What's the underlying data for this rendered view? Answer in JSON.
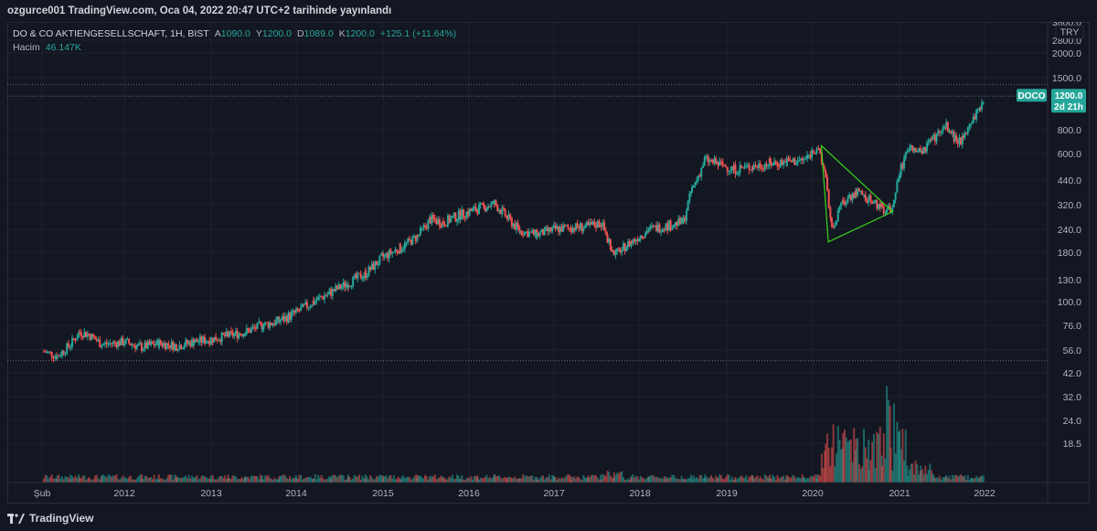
{
  "header": {
    "published": "ozgurce001 TradingView.com, Oca 04, 2022 20:47 UTC+2 tarihinde yayınlandı"
  },
  "legend": {
    "symbol": "DO & CO AKTIENGESELLSCHAFT, 1H, BIST",
    "o_label": "A",
    "o_value": "1090.0",
    "h_label": "Y",
    "h_value": "1200.0",
    "l_label": "D",
    "l_value": "1089.0",
    "c_label": "K",
    "c_value": "1200.0",
    "change": "+125.1 (+11.64%)",
    "volume_label": "Hacim",
    "volume_value": "46.147K"
  },
  "price_axis": {
    "currency": "TRY",
    "ticks": [
      "3800.0",
      "2800.0",
      "2000.0",
      "1500.0",
      "800.0",
      "600.0",
      "440.0",
      "320.0",
      "240.0",
      "180.0",
      "130.0",
      "100.0",
      "76.0",
      "56.0",
      "42.0",
      "32.0",
      "24.0",
      "18.5"
    ],
    "last_price": "1200.0",
    "countdown": "2d 21h",
    "symbol_badge": "DOCO"
  },
  "time_axis": {
    "ticks": [
      "Şub",
      "2012",
      "2013",
      "2014",
      "2015",
      "2016",
      "2017",
      "2018",
      "2019",
      "2020",
      "2021",
      "2022"
    ]
  },
  "colors": {
    "up": "#26a69a",
    "down": "#ef5350",
    "triangle": "#38d41a",
    "background": "#131722",
    "grid": "#1e222d",
    "dotted": "#5b6a80"
  },
  "chart_data": {
    "type": "candlestick",
    "scale": "log",
    "ylim": [
      18.5,
      3800
    ],
    "x_range": [
      2011.0,
      2022.4
    ],
    "series": [
      {
        "name": "DOCO",
        "points": [
          {
            "t": 2011.1,
            "v": 55
          },
          {
            "t": 2011.25,
            "v": 52
          },
          {
            "t": 2011.4,
            "v": 60
          },
          {
            "t": 2011.5,
            "v": 70
          },
          {
            "t": 2011.6,
            "v": 68
          },
          {
            "t": 2011.75,
            "v": 60
          },
          {
            "t": 2012.0,
            "v": 62
          },
          {
            "t": 2012.2,
            "v": 58
          },
          {
            "t": 2012.4,
            "v": 61
          },
          {
            "t": 2012.6,
            "v": 59
          },
          {
            "t": 2012.8,
            "v": 62
          },
          {
            "t": 2013.0,
            "v": 64
          },
          {
            "t": 2013.2,
            "v": 67
          },
          {
            "t": 2013.4,
            "v": 70
          },
          {
            "t": 2013.6,
            "v": 76
          },
          {
            "t": 2013.8,
            "v": 80
          },
          {
            "t": 2014.0,
            "v": 88
          },
          {
            "t": 2014.2,
            "v": 100
          },
          {
            "t": 2014.4,
            "v": 112
          },
          {
            "t": 2014.6,
            "v": 125
          },
          {
            "t": 2014.8,
            "v": 140
          },
          {
            "t": 2015.0,
            "v": 170
          },
          {
            "t": 2015.2,
            "v": 190
          },
          {
            "t": 2015.4,
            "v": 220
          },
          {
            "t": 2015.55,
            "v": 270
          },
          {
            "t": 2015.7,
            "v": 260
          },
          {
            "t": 2015.9,
            "v": 285
          },
          {
            "t": 2016.1,
            "v": 305
          },
          {
            "t": 2016.3,
            "v": 325
          },
          {
            "t": 2016.45,
            "v": 275
          },
          {
            "t": 2016.6,
            "v": 235
          },
          {
            "t": 2016.8,
            "v": 225
          },
          {
            "t": 2017.0,
            "v": 240
          },
          {
            "t": 2017.2,
            "v": 245
          },
          {
            "t": 2017.4,
            "v": 248
          },
          {
            "t": 2017.55,
            "v": 260
          },
          {
            "t": 2017.7,
            "v": 175
          },
          {
            "t": 2017.9,
            "v": 205
          },
          {
            "t": 2018.1,
            "v": 240
          },
          {
            "t": 2018.3,
            "v": 250
          },
          {
            "t": 2018.5,
            "v": 262
          },
          {
            "t": 2018.6,
            "v": 390
          },
          {
            "t": 2018.75,
            "v": 560
          },
          {
            "t": 2018.9,
            "v": 530
          },
          {
            "t": 2019.1,
            "v": 500
          },
          {
            "t": 2019.3,
            "v": 515
          },
          {
            "t": 2019.5,
            "v": 535
          },
          {
            "t": 2019.7,
            "v": 545
          },
          {
            "t": 2019.9,
            "v": 555
          },
          {
            "t": 2020.05,
            "v": 650
          },
          {
            "t": 2020.15,
            "v": 450
          },
          {
            "t": 2020.22,
            "v": 240
          },
          {
            "t": 2020.35,
            "v": 330
          },
          {
            "t": 2020.5,
            "v": 380
          },
          {
            "t": 2020.65,
            "v": 340
          },
          {
            "t": 2020.8,
            "v": 310
          },
          {
            "t": 2020.9,
            "v": 300
          },
          {
            "t": 2021.0,
            "v": 480
          },
          {
            "t": 2021.1,
            "v": 650
          },
          {
            "t": 2021.25,
            "v": 600
          },
          {
            "t": 2021.4,
            "v": 720
          },
          {
            "t": 2021.55,
            "v": 830
          },
          {
            "t": 2021.65,
            "v": 720
          },
          {
            "t": 2021.75,
            "v": 700
          },
          {
            "t": 2021.85,
            "v": 900
          },
          {
            "t": 2021.95,
            "v": 1050
          },
          {
            "t": 2022.0,
            "v": 1200
          }
        ]
      }
    ],
    "annotations": [
      {
        "type": "triangle",
        "points": [
          {
            "t": 2020.1,
            "v": 660
          },
          {
            "t": 2020.92,
            "v": 295
          },
          {
            "t": 2020.18,
            "v": 205
          }
        ]
      }
    ],
    "reference_lines": [
      1200,
      1380,
      49
    ]
  }
}
